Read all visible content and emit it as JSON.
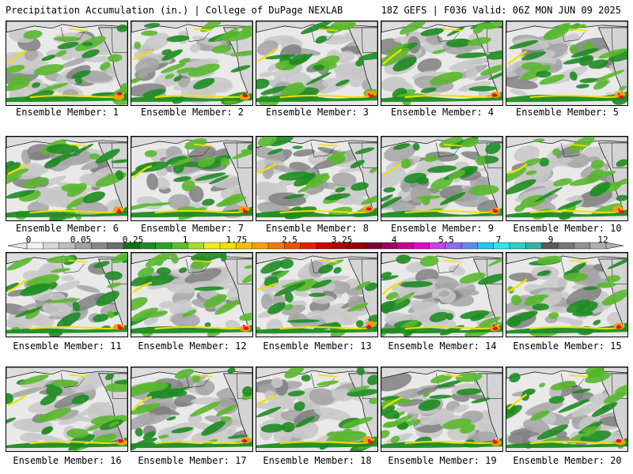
{
  "header": {
    "title_left": "Precipitation Accumulation (in.) | College of DuPage NEXLAB",
    "title_right": "18Z GEFS | F036 Valid: 06Z MON JUN 09 2025"
  },
  "panels": [
    {
      "label": "Ensemble Member: 1"
    },
    {
      "label": "Ensemble Member: 2"
    },
    {
      "label": "Ensemble Member: 3"
    },
    {
      "label": "Ensemble Member: 4"
    },
    {
      "label": "Ensemble Member: 5"
    },
    {
      "label": "Ensemble Member: 6"
    },
    {
      "label": "Ensemble Member: 7"
    },
    {
      "label": "Ensemble Member: 8"
    },
    {
      "label": "Ensemble Member: 9"
    },
    {
      "label": "Ensemble Member: 10"
    },
    {
      "label": "Ensemble Member: 11"
    },
    {
      "label": "Ensemble Member: 12"
    },
    {
      "label": "Ensemble Member: 13"
    },
    {
      "label": "Ensemble Member: 14"
    },
    {
      "label": "Ensemble Member: 15"
    },
    {
      "label": "Ensemble Member: 16"
    },
    {
      "label": "Ensemble Member: 17"
    },
    {
      "label": "Ensemble Member: 18"
    },
    {
      "label": "Ensemble Member: 19"
    },
    {
      "label": "Ensemble Member: 20"
    }
  ],
  "colorbar": {
    "labels": [
      "0",
      "0.05",
      "0.25",
      "1",
      "1.75",
      "2.5",
      "3.25",
      "4",
      "5.5",
      "7",
      "9",
      "12"
    ],
    "colors": [
      "#f2f2f2",
      "#d6d6d6",
      "#bcbcbc",
      "#a2a2a2",
      "#888888",
      "#6e6e6e",
      "#16701a",
      "#1e8c22",
      "#2aa52a",
      "#58c02e",
      "#a8dc2a",
      "#e8f020",
      "#f0e000",
      "#f4c000",
      "#f4a000",
      "#f47a00",
      "#f05000",
      "#e82000",
      "#d00000",
      "#b40000",
      "#980000",
      "#7c0030",
      "#a00060",
      "#c80090",
      "#e400c8",
      "#c840f0",
      "#8c6cf0",
      "#5a8cf0",
      "#1ec8f0",
      "#2ce8e8",
      "#30d0c0",
      "#2cb4a8",
      "#5a5a5a",
      "#767676",
      "#929292",
      "#aeaeae"
    ]
  },
  "colors": {
    "ocean_bg": "#e9e9e9",
    "light_gray": "#c8c8c8",
    "mid_gray": "#a4a4a4",
    "dark_gray": "#808080",
    "green_dark": "#1e8c22",
    "green_light": "#5ab82e",
    "yellow": "#f0e000",
    "orange": "#f4a000",
    "red": "#e01818",
    "magenta": "#d000a0"
  }
}
